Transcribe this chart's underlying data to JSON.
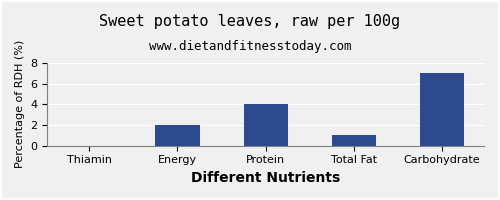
{
  "title": "Sweet potato leaves, raw per 100g",
  "subtitle": "www.dietandfitnesstoday.com",
  "categories": [
    "Thiamin",
    "Energy",
    "Protein",
    "Total Fat",
    "Carbohydrate"
  ],
  "values": [
    0,
    2,
    4,
    1,
    7
  ],
  "bar_color": "#2e4a8e",
  "xlabel": "Different Nutrients",
  "ylabel": "Percentage of RDH (%)",
  "ylim": [
    0,
    8
  ],
  "yticks": [
    0,
    2,
    4,
    6,
    8
  ],
  "background_color": "#f0f0f0",
  "title_fontsize": 11,
  "subtitle_fontsize": 9,
  "xlabel_fontsize": 10,
  "ylabel_fontsize": 8,
  "tick_fontsize": 8
}
